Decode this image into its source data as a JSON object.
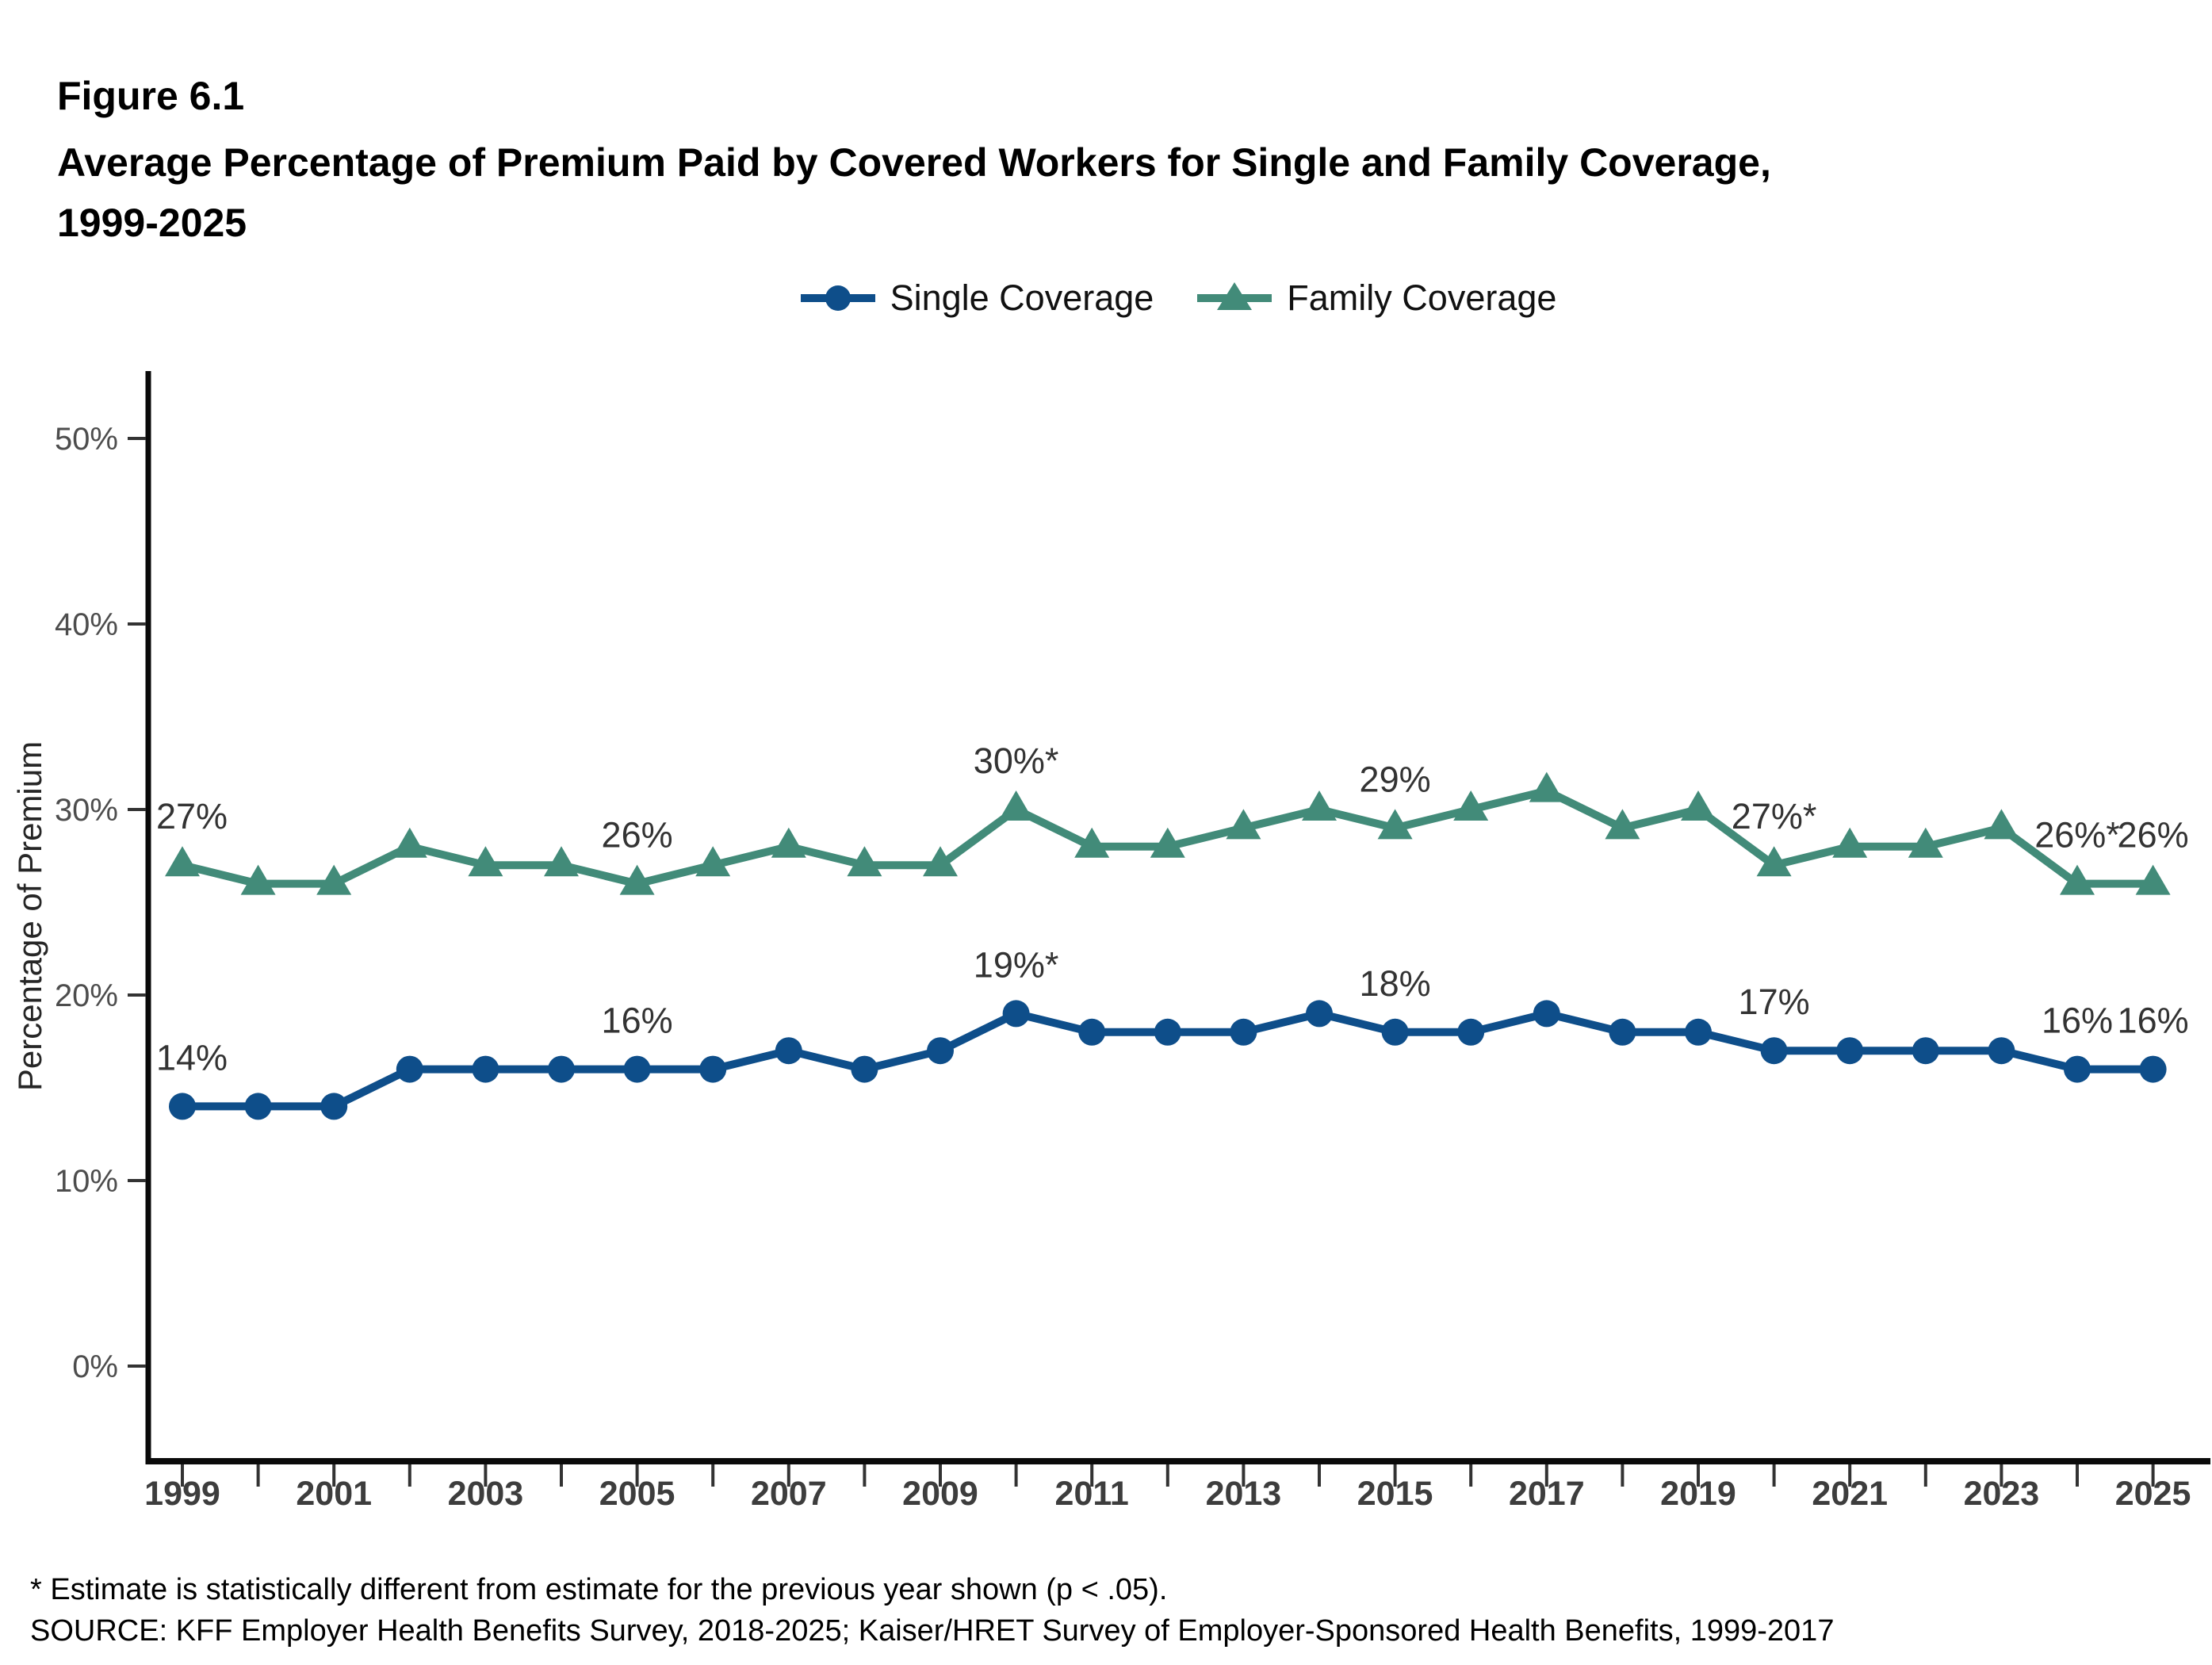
{
  "page": {
    "figure_label": "Figure 6.1",
    "title_line1": "Average Percentage of Premium Paid by Covered Workers for Single and Family Coverage,",
    "title_line2": "1999-2025",
    "footnote": "* Estimate is statistically different from estimate for the previous year shown (p < .05).",
    "source": "SOURCE: KFF Employer Health Benefits Survey, 2018-2025; Kaiser/HRET Survey of Employer-Sponsored Health Benefits, 1999-2017"
  },
  "colors": {
    "single": "#0E4E8A",
    "family": "#428B79",
    "axis": "#0A0A0A",
    "tick": "#333333",
    "x_tick_label": "#3D3D3D",
    "y_tick_label": "#4D4D4D",
    "data_label": "#333333",
    "axis_title": "#262626"
  },
  "chart_data": {
    "type": "line",
    "title": "Average Percentage of Premium Paid by Covered Workers for Single and Family Coverage, 1999-2025",
    "ylabel": "Percentage of Premium",
    "ylim": [
      0,
      50
    ],
    "grid": false,
    "legend_position": "top",
    "x": [
      1999,
      2000,
      2001,
      2002,
      2003,
      2004,
      2005,
      2006,
      2007,
      2008,
      2009,
      2010,
      2011,
      2012,
      2013,
      2014,
      2015,
      2016,
      2017,
      2018,
      2019,
      2020,
      2021,
      2022,
      2023,
      2024,
      2025
    ],
    "x_tick_labels": [
      "1999",
      "2001",
      "2003",
      "2005",
      "2007",
      "2009",
      "2011",
      "2013",
      "2015",
      "2017",
      "2019",
      "2021",
      "2023",
      "2025"
    ],
    "y_ticks": [
      {
        "value": 0,
        "label": "0%"
      },
      {
        "value": 10,
        "label": "10%"
      },
      {
        "value": 20,
        "label": "20%"
      },
      {
        "value": 30,
        "label": "30%"
      },
      {
        "value": 40,
        "label": "40%"
      },
      {
        "value": 50,
        "label": "50%"
      }
    ],
    "series": [
      {
        "name": "Single Coverage",
        "marker": "circle",
        "color_key": "single",
        "values": [
          14,
          14,
          14,
          16,
          16,
          16,
          16,
          16,
          17,
          16,
          17,
          19,
          18,
          18,
          18,
          19,
          18,
          18,
          19,
          18,
          18,
          17,
          17,
          17,
          17,
          16,
          16
        ],
        "point_labels": [
          {
            "year": 1999,
            "text": "14%"
          },
          {
            "year": 2005,
            "text": "16%"
          },
          {
            "year": 2010,
            "text": "19%*"
          },
          {
            "year": 2015,
            "text": "18%"
          },
          {
            "year": 2020,
            "text": "17%"
          },
          {
            "year": 2024,
            "text": "16%"
          },
          {
            "year": 2025,
            "text": "16%"
          }
        ]
      },
      {
        "name": "Family Coverage",
        "marker": "triangle",
        "color_key": "family",
        "values": [
          27,
          26,
          26,
          28,
          27,
          27,
          26,
          27,
          28,
          27,
          27,
          30,
          28,
          28,
          29,
          30,
          29,
          30,
          31,
          29,
          30,
          27,
          28,
          28,
          29,
          26,
          26
        ],
        "point_labels": [
          {
            "year": 1999,
            "text": "27%"
          },
          {
            "year": 2005,
            "text": "26%"
          },
          {
            "year": 2010,
            "text": "30%*"
          },
          {
            "year": 2015,
            "text": "29%"
          },
          {
            "year": 2020,
            "text": "27%*"
          },
          {
            "year": 2024,
            "text": "26%*"
          },
          {
            "year": 2025,
            "text": "26%"
          }
        ]
      }
    ]
  }
}
